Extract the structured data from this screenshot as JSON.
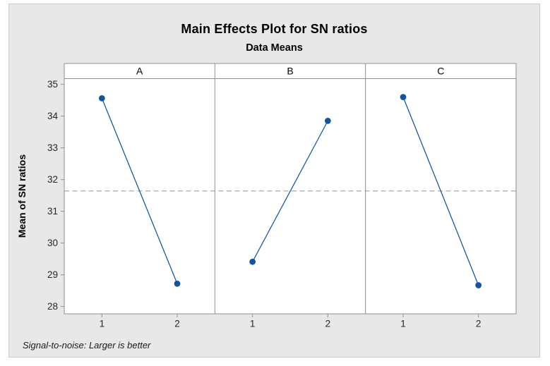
{
  "chart_data": {
    "type": "line",
    "chart_kind": "main-effects-plot",
    "title": "Main Effects Plot for SN ratios",
    "subtitle": "Data Means",
    "ylabel": "Mean of SN ratios",
    "footer_note": "Signal-to-noise: Larger is better",
    "categories": [
      "1",
      "2"
    ],
    "panels": [
      {
        "label": "A",
        "values": [
          34.56,
          28.72
        ]
      },
      {
        "label": "B",
        "values": [
          29.41,
          33.85
        ]
      },
      {
        "label": "C",
        "values": [
          34.6,
          28.67
        ]
      }
    ],
    "reference_line": 31.64,
    "yticks": [
      35,
      34,
      33,
      32,
      31,
      30,
      29,
      28
    ],
    "ylim": [
      27.77,
      35.18
    ],
    "grid": false,
    "legend": "none",
    "colors": {
      "point": "#1155a0",
      "line": "#1155a0",
      "reference": "#a0a0a0",
      "frame": "#8f8f8f",
      "tick_text": "#262626",
      "panel_text": "#000000",
      "canvas_bg": "#e8e8e8",
      "plot_bg": "#ffffff"
    }
  }
}
